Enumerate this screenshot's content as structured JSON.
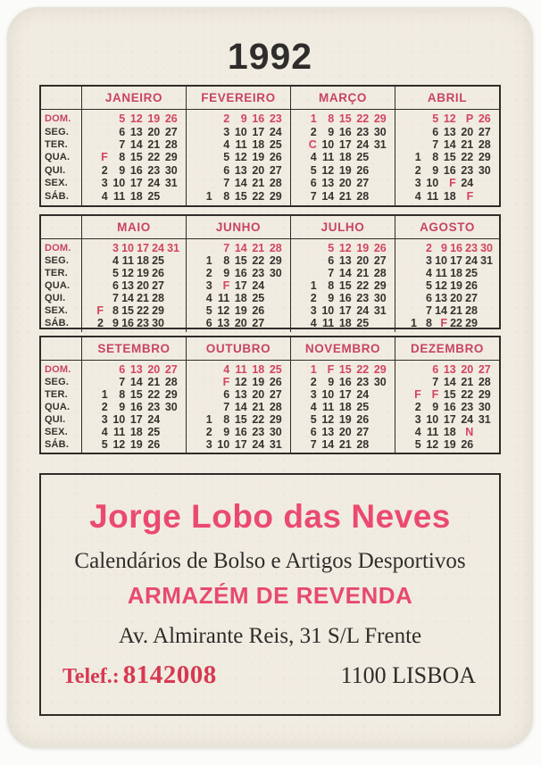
{
  "title": "1992",
  "weekday_labels": [
    "DOM.",
    "SEG.",
    "TER.",
    "QUA.",
    "QUI.",
    "SEX.",
    "SÁB."
  ],
  "colors": {
    "card_background": "#f1ece1",
    "accent_red": "#c84462",
    "ad_pink": "#eb4a6f",
    "phone_red": "#d63a52",
    "ink": "#2e2d2b"
  },
  "calendar": {
    "months": [
      {
        "name": "JANEIRO",
        "cols": 5,
        "rows": [
          [
            "",
            "5",
            "12",
            "19",
            "26"
          ],
          [
            "",
            "6",
            "13",
            "20",
            "27"
          ],
          [
            "",
            "7",
            "14",
            "21",
            "28"
          ],
          [
            "F",
            "8",
            "15",
            "22",
            "29"
          ],
          [
            "2",
            "9",
            "16",
            "23",
            "30"
          ],
          [
            "3",
            "10",
            "17",
            "24",
            "31"
          ],
          [
            "4",
            "11",
            "18",
            "25",
            ""
          ]
        ]
      },
      {
        "name": "FEVEREIRO",
        "cols": 5,
        "rows": [
          [
            "",
            "2",
            "9",
            "16",
            "23"
          ],
          [
            "",
            "3",
            "10",
            "17",
            "24"
          ],
          [
            "",
            "4",
            "11",
            "18",
            "25"
          ],
          [
            "",
            "5",
            "12",
            "19",
            "26"
          ],
          [
            "",
            "6",
            "13",
            "20",
            "27"
          ],
          [
            "",
            "7",
            "14",
            "21",
            "28"
          ],
          [
            "1",
            "8",
            "15",
            "22",
            "29"
          ]
        ]
      },
      {
        "name": "MARÇO",
        "cols": 5,
        "rows": [
          [
            "1",
            "8",
            "15",
            "22",
            "29"
          ],
          [
            "2",
            "9",
            "16",
            "23",
            "30"
          ],
          [
            "C",
            "10",
            "17",
            "24",
            "31"
          ],
          [
            "4",
            "11",
            "18",
            "25",
            ""
          ],
          [
            "5",
            "12",
            "19",
            "26",
            ""
          ],
          [
            "6",
            "13",
            "20",
            "27",
            ""
          ],
          [
            "7",
            "14",
            "21",
            "28",
            ""
          ]
        ]
      },
      {
        "name": "ABRIL",
        "cols": 5,
        "rows": [
          [
            "",
            "5",
            "12",
            "P",
            "26"
          ],
          [
            "",
            "6",
            "13",
            "20",
            "27"
          ],
          [
            "",
            "7",
            "14",
            "21",
            "28"
          ],
          [
            "1",
            "8",
            "15",
            "22",
            "29"
          ],
          [
            "2",
            "9",
            "16",
            "23",
            "30"
          ],
          [
            "3",
            "10",
            "F",
            "24",
            ""
          ],
          [
            "4",
            "11",
            "18",
            "F",
            ""
          ]
        ]
      },
      {
        "name": "MAIO",
        "cols": 6,
        "rows": [
          [
            "",
            "3",
            "10",
            "17",
            "24",
            "31"
          ],
          [
            "",
            "4",
            "11",
            "18",
            "25",
            ""
          ],
          [
            "",
            "5",
            "12",
            "19",
            "26",
            ""
          ],
          [
            "",
            "6",
            "13",
            "20",
            "27",
            ""
          ],
          [
            "",
            "7",
            "14",
            "21",
            "28",
            ""
          ],
          [
            "F",
            "8",
            "15",
            "22",
            "29",
            ""
          ],
          [
            "2",
            "9",
            "16",
            "23",
            "30",
            ""
          ]
        ]
      },
      {
        "name": "JUNHO",
        "cols": 5,
        "rows": [
          [
            "",
            "7",
            "14",
            "21",
            "28"
          ],
          [
            "1",
            "8",
            "15",
            "22",
            "29"
          ],
          [
            "2",
            "9",
            "16",
            "23",
            "30"
          ],
          [
            "3",
            "F",
            "17",
            "24",
            ""
          ],
          [
            "4",
            "11",
            "18",
            "25",
            ""
          ],
          [
            "5",
            "12",
            "19",
            "26",
            ""
          ],
          [
            "6",
            "13",
            "20",
            "27",
            ""
          ]
        ]
      },
      {
        "name": "JULHO",
        "cols": 5,
        "rows": [
          [
            "",
            "5",
            "12",
            "19",
            "26"
          ],
          [
            "",
            "6",
            "13",
            "20",
            "27"
          ],
          [
            "",
            "7",
            "14",
            "21",
            "28"
          ],
          [
            "1",
            "8",
            "15",
            "22",
            "29"
          ],
          [
            "2",
            "9",
            "16",
            "23",
            "30"
          ],
          [
            "3",
            "10",
            "17",
            "24",
            "31"
          ],
          [
            "4",
            "11",
            "18",
            "25",
            ""
          ]
        ]
      },
      {
        "name": "AGOSTO",
        "cols": 6,
        "rows": [
          [
            "",
            "2",
            "9",
            "16",
            "23",
            "30"
          ],
          [
            "",
            "3",
            "10",
            "17",
            "24",
            "31"
          ],
          [
            "",
            "4",
            "11",
            "18",
            "25",
            ""
          ],
          [
            "",
            "5",
            "12",
            "19",
            "26",
            ""
          ],
          [
            "",
            "6",
            "13",
            "20",
            "27",
            ""
          ],
          [
            "",
            "7",
            "14",
            "21",
            "28",
            ""
          ],
          [
            "1",
            "8",
            "F",
            "22",
            "29",
            ""
          ]
        ]
      },
      {
        "name": "SETEMBRO",
        "cols": 5,
        "rows": [
          [
            "",
            "6",
            "13",
            "20",
            "27"
          ],
          [
            "",
            "7",
            "14",
            "21",
            "28"
          ],
          [
            "1",
            "8",
            "15",
            "22",
            "29"
          ],
          [
            "2",
            "9",
            "16",
            "23",
            "30"
          ],
          [
            "3",
            "10",
            "17",
            "24",
            ""
          ],
          [
            "4",
            "11",
            "18",
            "25",
            ""
          ],
          [
            "5",
            "12",
            "19",
            "26",
            ""
          ]
        ]
      },
      {
        "name": "OUTUBRO",
        "cols": 5,
        "rows": [
          [
            "",
            "4",
            "11",
            "18",
            "25"
          ],
          [
            "",
            "F",
            "12",
            "19",
            "26"
          ],
          [
            "",
            "6",
            "13",
            "20",
            "27"
          ],
          [
            "",
            "7",
            "14",
            "21",
            "28"
          ],
          [
            "1",
            "8",
            "15",
            "22",
            "29"
          ],
          [
            "2",
            "9",
            "16",
            "23",
            "30"
          ],
          [
            "3",
            "10",
            "17",
            "24",
            "31"
          ]
        ]
      },
      {
        "name": "NOVEMBRO",
        "cols": 5,
        "rows": [
          [
            "1",
            "F",
            "15",
            "22",
            "29"
          ],
          [
            "2",
            "9",
            "16",
            "23",
            "30"
          ],
          [
            "3",
            "10",
            "17",
            "24",
            ""
          ],
          [
            "4",
            "11",
            "18",
            "25",
            ""
          ],
          [
            "5",
            "12",
            "19",
            "26",
            ""
          ],
          [
            "6",
            "13",
            "20",
            "27",
            ""
          ],
          [
            "7",
            "14",
            "21",
            "28",
            ""
          ]
        ]
      },
      {
        "name": "DEZEMBRO",
        "cols": 5,
        "rows": [
          [
            "",
            "6",
            "13",
            "20",
            "27"
          ],
          [
            "",
            "7",
            "14",
            "21",
            "28"
          ],
          [
            "F",
            "F",
            "15",
            "22",
            "29"
          ],
          [
            "2",
            "9",
            "16",
            "23",
            "30"
          ],
          [
            "3",
            "10",
            "17",
            "24",
            "31"
          ],
          [
            "4",
            "11",
            "18",
            "N",
            ""
          ],
          [
            "5",
            "12",
            "19",
            "26",
            ""
          ]
        ]
      }
    ]
  },
  "ad": {
    "business_name": "Jorge Lobo das Neves",
    "description": "Calendários de Bolso e Artigos Desportivos",
    "warehouse_line": "ARMAZÉM DE REVENDA",
    "address": "Av. Almirante Reis, 31 S/L Frente",
    "phone_label": "Telef.:",
    "phone_number": "8142008",
    "city": "1100 LISBOA"
  }
}
